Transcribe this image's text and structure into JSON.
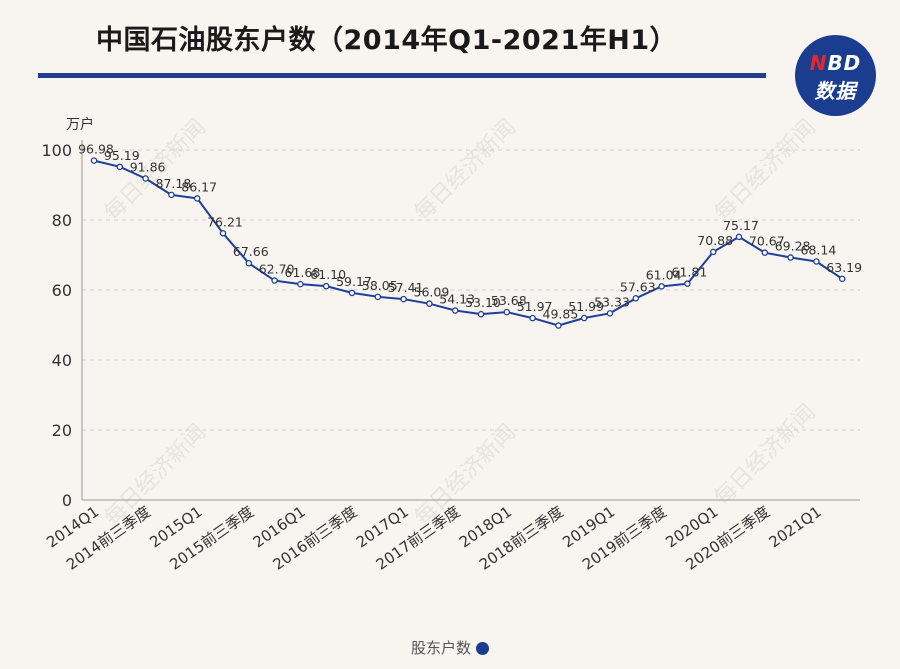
{
  "header": {
    "title": "中国石油股东户数（2014年Q1-2021年H1）"
  },
  "logo": {
    "top_text_accent": "N",
    "top_text_rest": "BD",
    "bottom_text": "数据"
  },
  "watermark": {
    "text": "每日经济新闻"
  },
  "colors": {
    "line": "#1f3f99",
    "title_rule": "#1f3f8c",
    "logo_bg": "#1a3d8f",
    "logo_accent": "#e6262b",
    "grid": "#cfcfcf",
    "background": "#f8f5f1"
  },
  "legend": {
    "label": "股东户数"
  },
  "chart_data": {
    "type": "line",
    "title": "中国石油股东户数（2014年Q1-2021年H1）",
    "ylabel": "万户",
    "xlabel": "",
    "ylim": [
      0,
      100
    ],
    "yticks": [
      0,
      20,
      40,
      60,
      80,
      100
    ],
    "grid": true,
    "legend_position": "bottom-center",
    "x_tick_labels": [
      "2014Q1",
      "2014前三季度",
      "2015Q1",
      "2015前三季度",
      "2016Q1",
      "2016前三季度",
      "2017Q1",
      "2017前三季度",
      "2018Q1",
      "2018前三季度",
      "2019Q1",
      "2019前三季度",
      "2020Q1",
      "2020前三季度",
      "2021Q1"
    ],
    "series": [
      {
        "name": "股东户数",
        "values": [
          96.98,
          95.19,
          91.86,
          87.18,
          86.17,
          76.21,
          67.66,
          62.7,
          61.68,
          61.1,
          59.17,
          58.05,
          57.41,
          56.09,
          54.13,
          53.1,
          53.68,
          51.97,
          49.85,
          51.99,
          53.33,
          57.63,
          61.04,
          61.81,
          70.88,
          75.17,
          70.67,
          69.28,
          68.14,
          63.19
        ],
        "labels": [
          "96.98",
          "95.19",
          "91.86",
          "87.18",
          "86.17",
          "76.21",
          "67.66",
          "62.70",
          "61.68",
          "61.10",
          "59.17",
          "58.05",
          "57.41",
          "56.09",
          "54.13",
          "53.10",
          "53.68",
          "51.97",
          "49.85",
          "51.99",
          "53.33",
          "57.63",
          "61.04",
          "61.81",
          "70.88",
          "75.17",
          "70.67",
          "69.28",
          "68.14",
          "63.19"
        ]
      }
    ]
  }
}
